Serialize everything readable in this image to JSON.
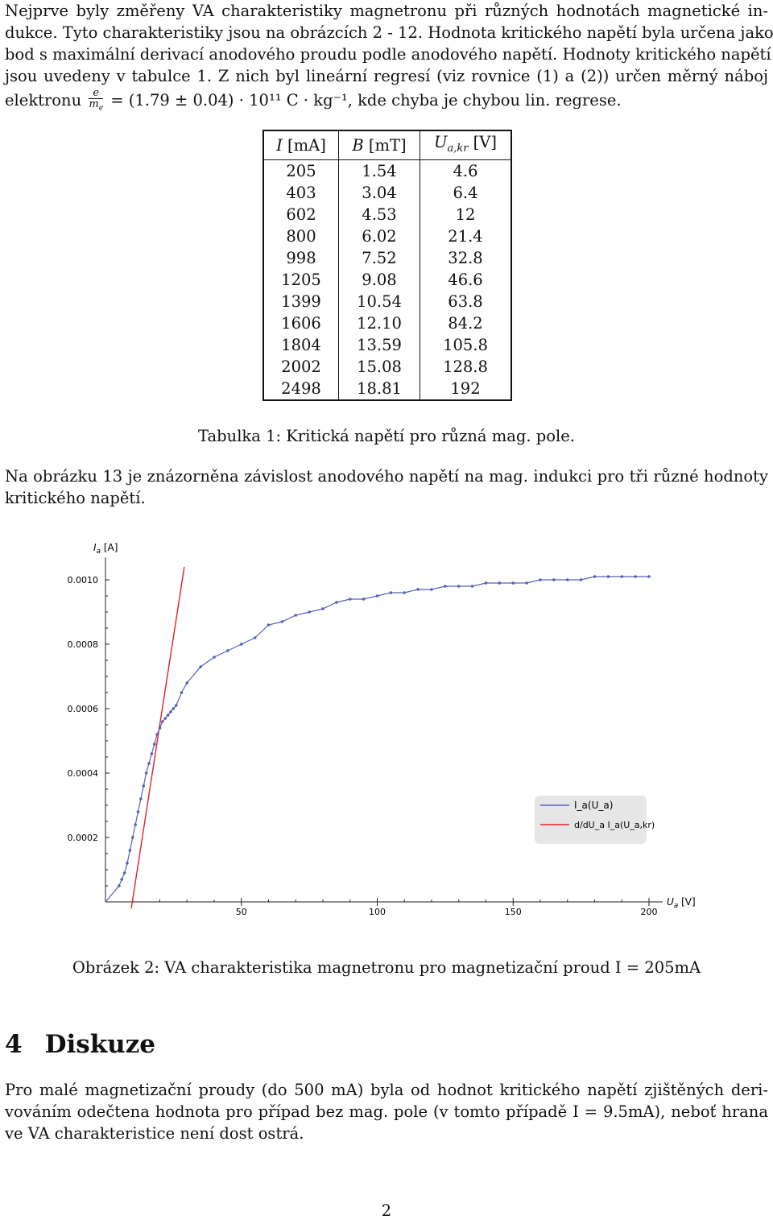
{
  "intro": {
    "lines": [
      "Nejprve byly změřeny VA charakteristiky magnetronu při různých hodnotách magnetické in-",
      "dukce. Tyto charakteristiky jsou na obrázcích 2 - 12. Hodnota kritického napětí byla určena jako",
      "bod s maximální derivací anodového proudu podle anodového napětí. Hodnoty kritického napětí",
      "jsou uvedeny v tabulce 1. Z nich byl lineární regresí (viz rovnice (1) a (2)) určen měrný náboj"
    ],
    "last_prefix": "elektronu",
    "frac_num": "e",
    "frac_den": "m",
    "frac_den_sub": "e",
    "last_suffix": "= (1.79 ± 0.04) · 10¹¹ C · kg⁻¹, kde chyba je chybou lin. regrese."
  },
  "table": {
    "headers": [
      "I [mA]",
      "B [mT]",
      "U_a,kr [V]"
    ],
    "rows": [
      [
        "205",
        "1.54",
        "4.6"
      ],
      [
        "403",
        "3.04",
        "6.4"
      ],
      [
        "602",
        "4.53",
        "12"
      ],
      [
        "800",
        "6.02",
        "21.4"
      ],
      [
        "998",
        "7.52",
        "32.8"
      ],
      [
        "1205",
        "9.08",
        "46.6"
      ],
      [
        "1399",
        "10.54",
        "63.8"
      ],
      [
        "1606",
        "12.10",
        "84.2"
      ],
      [
        "1804",
        "13.59",
        "105.8"
      ],
      [
        "2002",
        "15.08",
        "128.8"
      ],
      [
        "2498",
        "18.81",
        "192"
      ]
    ],
    "caption": "Tabulka 1: Kritická napětí pro různá mag. pole."
  },
  "para2": {
    "line1": "Na obrázku 13 je znázorněna závislost anodového napětí na mag. indukci pro tři různé hodnoty",
    "line2": "kritického napětí."
  },
  "figure_caption": "Obrázek 2: VA charakteristika magnetronu pro magnetizační proud I = 205mA",
  "section": {
    "number": "4",
    "title": "Diskuze",
    "lines": [
      "Pro malé magnetizační proudy (do 500 mA) byla od hodnot kritického napětí zjištěných deri-",
      "vováním odečtena hodnota pro případ bez mag. pole (v tomto případě I = 9.5mA), neboť hrana",
      "ve VA charakteristice není dost ostrá."
    ]
  },
  "page_number": "2",
  "chart_data": {
    "type": "line",
    "xlabel": "U_a [V]",
    "ylabel": "I_a [A]",
    "xlim": [
      0,
      205
    ],
    "ylim": [
      0,
      0.00105
    ],
    "xticks": [
      "50",
      "100",
      "150",
      "200"
    ],
    "yticks": [
      "0.0002",
      "0.0004",
      "0.0006",
      "0.0008",
      "0.0010"
    ],
    "legend_position": "right",
    "colors": {
      "series": "#5560b8",
      "tangent": "#e02424"
    },
    "series": [
      {
        "name": "I_a(U_a)",
        "x": [
          0,
          5,
          6,
          7,
          8,
          9,
          10,
          11,
          12,
          13,
          14,
          15,
          16,
          17,
          18,
          19,
          20,
          21,
          22,
          23,
          24,
          25,
          26,
          28,
          30,
          35,
          40,
          45,
          50,
          55,
          60,
          65,
          70,
          75,
          80,
          85,
          90,
          95,
          100,
          105,
          110,
          115,
          120,
          125,
          130,
          135,
          140,
          145,
          150,
          155,
          160,
          165,
          170,
          175,
          180,
          185,
          190,
          195,
          200
        ],
        "y": [
          0,
          5e-05,
          7e-05,
          9e-05,
          0.00012,
          0.00016,
          0.0002,
          0.00024,
          0.00028,
          0.00032,
          0.00036,
          0.0004,
          0.00043,
          0.00046,
          0.00049,
          0.00052,
          0.00054,
          0.00056,
          0.00057,
          0.00058,
          0.00059,
          0.0006,
          0.00061,
          0.00065,
          0.00068,
          0.00073,
          0.00076,
          0.00078,
          0.0008,
          0.00082,
          0.00086,
          0.00087,
          0.00089,
          0.0009,
          0.00091,
          0.00093,
          0.00094,
          0.00094,
          0.00095,
          0.00096,
          0.00096,
          0.00097,
          0.00097,
          0.00098,
          0.00098,
          0.00098,
          0.00099,
          0.00099,
          0.00099,
          0.00099,
          0.001,
          0.001,
          0.001,
          0.001,
          0.00101,
          0.00101,
          0.00101,
          0.00101,
          0.00101
        ]
      },
      {
        "name": "d/dU_a I_a(U_a,kr)",
        "x": [
          9.5,
          29
        ],
        "y": [
          -2e-05,
          0.00104
        ]
      }
    ]
  }
}
